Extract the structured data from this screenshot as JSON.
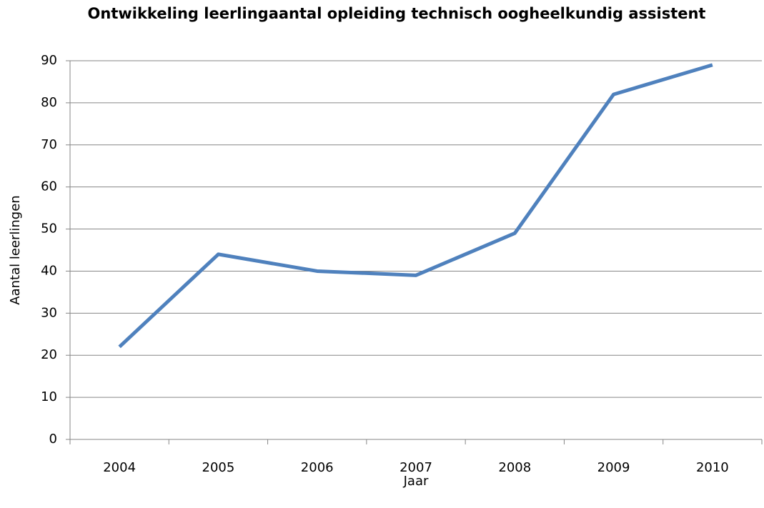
{
  "chart_data": {
    "type": "line",
    "title": "Ontwikkeling leerlingaantal opleiding technisch oogheelkundig assistent",
    "x_label": "Jaar",
    "y_label": "Aantal leerlingen",
    "categories": [
      "2004",
      "2005",
      "2006",
      "2007",
      "2008",
      "2009",
      "2010"
    ],
    "series": [
      {
        "name": "Aantal leerlingen",
        "color": "#4f81bd",
        "values": [
          22,
          44,
          40,
          39,
          49,
          82,
          89
        ]
      }
    ],
    "ylim": [
      0,
      90
    ],
    "yticks": [
      0,
      10,
      20,
      30,
      40,
      50,
      60,
      70,
      80,
      90
    ],
    "grid": true
  }
}
